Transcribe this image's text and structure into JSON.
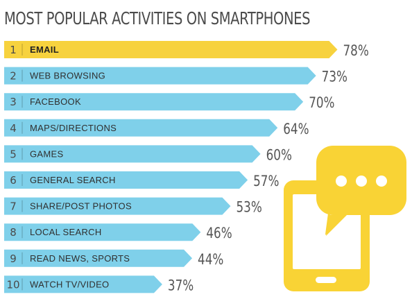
{
  "title": "MOST POPULAR ACTIVITIES ON SMARTPHONES",
  "colors": {
    "highlight": "#f7d23e",
    "bar": "#7fd0ea",
    "phone": "#f9d335"
  },
  "chart_data": {
    "type": "bar",
    "orientation": "horizontal",
    "title": "MOST POPULAR ACTIVITIES ON SMARTPHONES",
    "ranks": [
      "1",
      "2",
      "3",
      "4",
      "5",
      "6",
      "7",
      "8",
      "9",
      "10"
    ],
    "categories": [
      "EMAIL",
      "WEB BROWSING",
      "FACEBOOK",
      "MAPS/DIRECTIONS",
      "GAMES",
      "GENERAL SEARCH",
      "SHARE/POST PHOTOS",
      "LOCAL SEARCH",
      "READ NEWS, SPORTS",
      "WATCH TV/VIDEO"
    ],
    "values": [
      78,
      73,
      70,
      64,
      60,
      57,
      53,
      46,
      44,
      37
    ],
    "value_labels": [
      "78%",
      "73%",
      "70%",
      "64%",
      "60%",
      "57%",
      "53%",
      "46%",
      "44%",
      "37%"
    ],
    "grid": false
  },
  "illustration": {
    "icon": "smartphone-chat-bubble-icon"
  }
}
